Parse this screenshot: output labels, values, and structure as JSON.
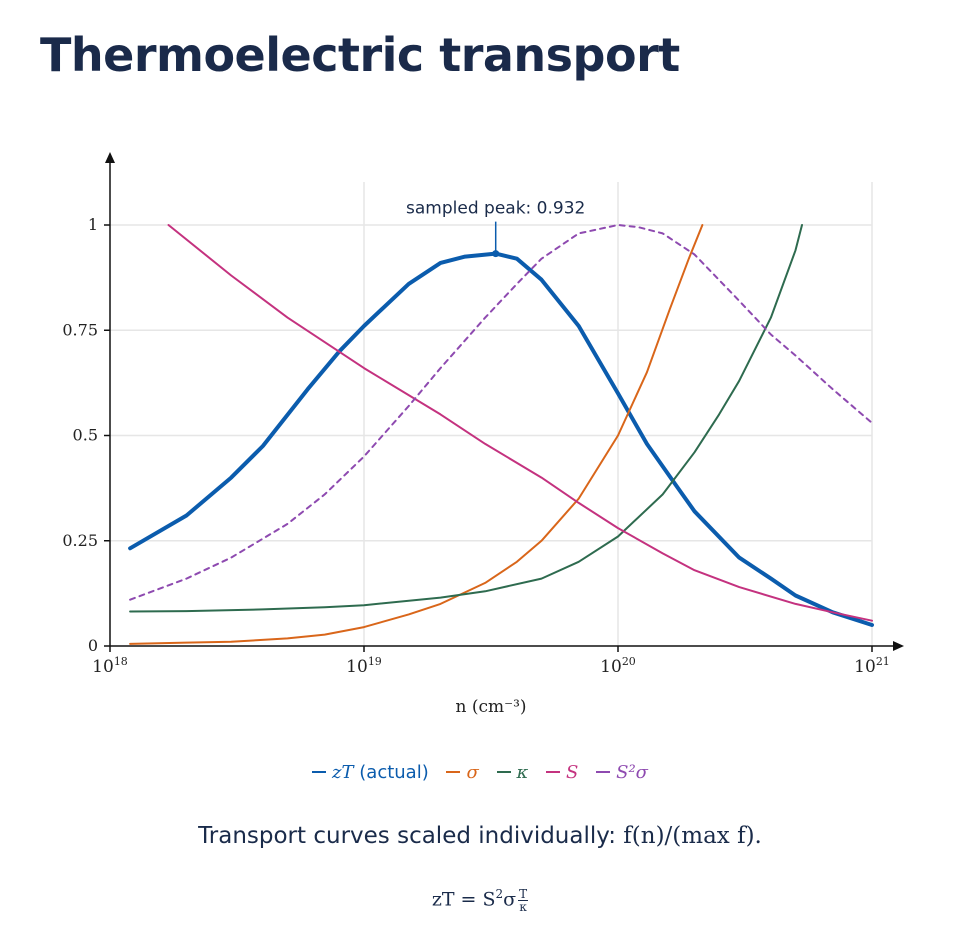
{
  "page": {
    "title": "Thermoelectric transport"
  },
  "colors": {
    "zT": "#0b5cad",
    "sigma": "#d9661a",
    "kappa": "#2e6b4f",
    "S": "#c4327f",
    "S2sigma": "#8e4ab0",
    "axis": "#111111",
    "grid": "#e6e6e6"
  },
  "legend": {
    "zT_symbol": "zT",
    "zT_suffix": "(actual)",
    "sigma_symbol": "σ",
    "kappa_symbol": "κ",
    "S_symbol": "S",
    "S2sigma_symbol": "S²σ"
  },
  "caption": {
    "text": "Transport curves scaled individually:",
    "expr": "f(n)/(max f)."
  },
  "formula": {
    "lhs": "zT = S",
    "sup": "2",
    "mid": "σ",
    "num": "T",
    "den": "κ"
  },
  "chart_data": {
    "type": "line",
    "title": "",
    "xlabel": "n (cm⁻³)",
    "ylabel": "",
    "xscale": "log",
    "xlim": [
      1e+18,
      1e+21
    ],
    "ylim": [
      0,
      1.1
    ],
    "xticks": [
      1e+18,
      1e+19,
      1e+20,
      1e+21
    ],
    "xtick_labels": [
      {
        "base": "10",
        "exp": "18"
      },
      {
        "base": "10",
        "exp": "19"
      },
      {
        "base": "10",
        "exp": "20"
      },
      {
        "base": "10",
        "exp": "21"
      }
    ],
    "yticks": [
      0,
      0.25,
      0.5,
      0.75,
      1
    ],
    "ytick_labels": [
      "0",
      "0.25",
      "0.5",
      "0.75",
      "1"
    ],
    "grid": true,
    "annotation": {
      "text": "sampled peak: 0.932",
      "x": 3.3e+19,
      "y": 0.932
    },
    "series": [
      {
        "name": "zT (actual)",
        "key": "zT",
        "style": "solid-thick",
        "x": [
          1.2e+18,
          2e+18,
          3e+18,
          4e+18,
          6e+18,
          8e+18,
          1e+19,
          1.5e+19,
          2e+19,
          2.5e+19,
          3.3e+19,
          4e+19,
          5e+19,
          7e+19,
          1e+20,
          1.3e+20,
          1.7e+20,
          2e+20,
          3e+20,
          4e+20,
          5e+20,
          7e+20,
          1e+21
        ],
        "y": [
          0.232,
          0.31,
          0.4,
          0.475,
          0.61,
          0.7,
          0.76,
          0.86,
          0.91,
          0.925,
          0.932,
          0.92,
          0.87,
          0.76,
          0.6,
          0.48,
          0.38,
          0.32,
          0.21,
          0.16,
          0.12,
          0.08,
          0.05
        ]
      },
      {
        "name": "σ",
        "key": "sigma",
        "style": "solid",
        "x": [
          1.2e+18,
          2e+18,
          3e+18,
          5e+18,
          7e+18,
          1e+19,
          1.5e+19,
          2e+19,
          3e+19,
          4e+19,
          5e+19,
          7e+19,
          1e+20,
          1.3e+20,
          1.6e+20,
          1.9e+20,
          2.15e+20
        ],
        "y": [
          0.005,
          0.008,
          0.01,
          0.018,
          0.027,
          0.045,
          0.075,
          0.1,
          0.15,
          0.2,
          0.25,
          0.35,
          0.5,
          0.65,
          0.8,
          0.92,
          1.0
        ]
      },
      {
        "name": "κ",
        "key": "kappa",
        "style": "solid",
        "x": [
          1.2e+18,
          2e+18,
          4e+18,
          7e+18,
          1e+19,
          2e+19,
          3e+19,
          5e+19,
          7e+19,
          1e+20,
          1.5e+20,
          2e+20,
          2.5e+20,
          3e+20,
          4e+20,
          5e+20,
          5.3e+20
        ],
        "y": [
          0.082,
          0.083,
          0.087,
          0.092,
          0.097,
          0.115,
          0.13,
          0.16,
          0.2,
          0.26,
          0.36,
          0.46,
          0.55,
          0.63,
          0.78,
          0.94,
          1.0
        ]
      },
      {
        "name": "S",
        "key": "S",
        "style": "solid",
        "x": [
          1.7e+18,
          3e+18,
          5e+18,
          1e+19,
          2e+19,
          3e+19,
          5e+19,
          7e+19,
          1e+20,
          1.5e+20,
          2e+20,
          3e+20,
          5e+20,
          7e+20,
          1e+21
        ],
        "y": [
          1.0,
          0.88,
          0.78,
          0.66,
          0.55,
          0.48,
          0.4,
          0.34,
          0.28,
          0.22,
          0.18,
          0.14,
          0.1,
          0.08,
          0.06
        ]
      },
      {
        "name": "S²σ",
        "key": "S2sigma",
        "style": "dashed",
        "x": [
          1.2e+18,
          2e+18,
          3e+18,
          5e+18,
          7e+18,
          1e+19,
          1.5e+19,
          2e+19,
          3e+19,
          4e+19,
          5e+19,
          7e+19,
          1e+20,
          1.2e+20,
          1.5e+20,
          2e+20,
          3e+20,
          4e+20,
          5e+20,
          7e+20,
          1e+21
        ],
        "y": [
          0.11,
          0.16,
          0.21,
          0.29,
          0.36,
          0.45,
          0.57,
          0.66,
          0.78,
          0.86,
          0.92,
          0.98,
          1.0,
          0.995,
          0.98,
          0.93,
          0.82,
          0.74,
          0.69,
          0.61,
          0.53
        ]
      }
    ]
  }
}
